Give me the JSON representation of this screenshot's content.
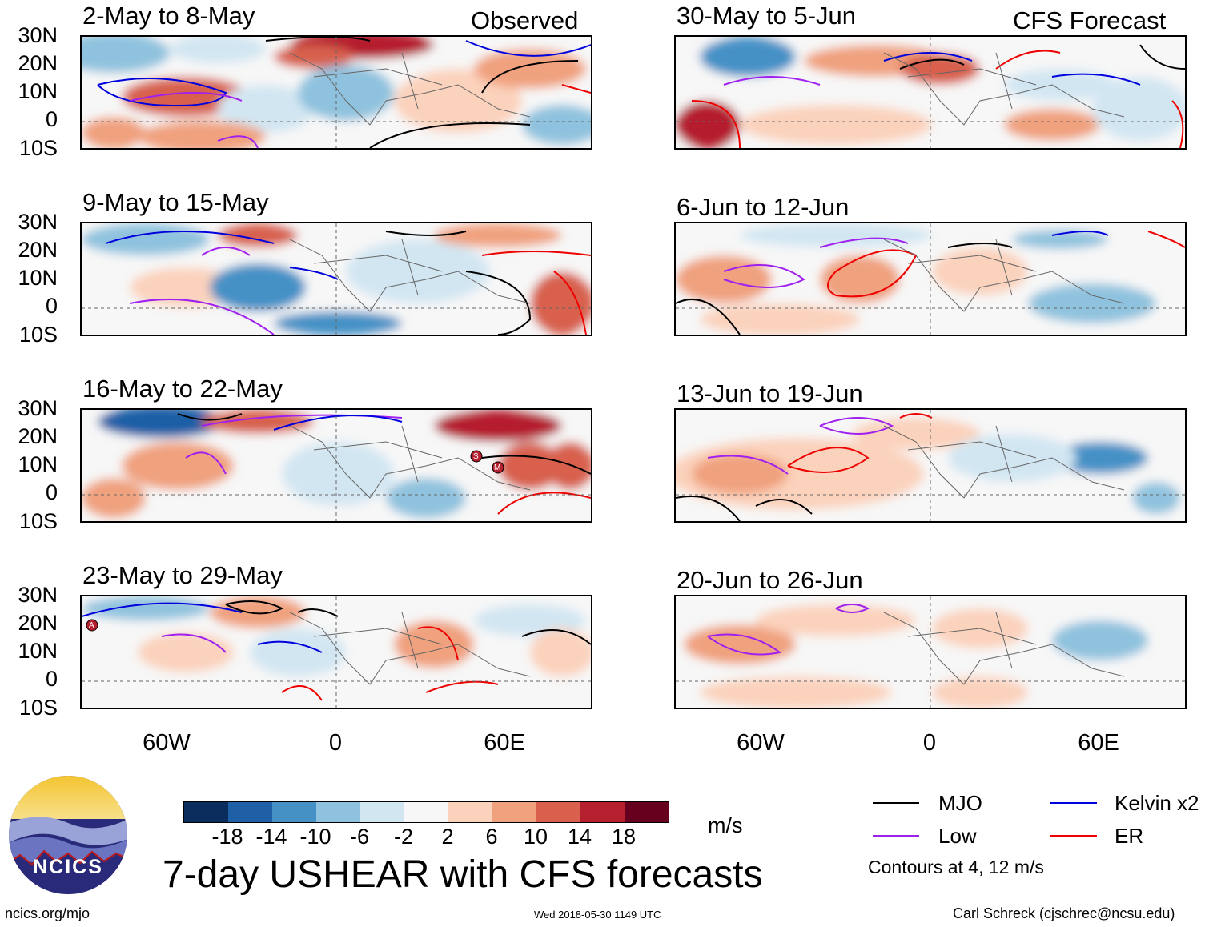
{
  "title": "7-day USHEAR with CFS forecasts",
  "columns": {
    "left": {
      "source_label": "Observed"
    },
    "right": {
      "source_label": "CFS Forecast"
    }
  },
  "panels": [
    {
      "label": "2-May to 8-May"
    },
    {
      "label": "30-May to 5-Jun"
    },
    {
      "label": "9-May to 15-May"
    },
    {
      "label": "6-Jun to 12-Jun"
    },
    {
      "label": "16-May to 22-May"
    },
    {
      "label": "13-Jun to 19-Jun"
    },
    {
      "label": "23-May to 29-May"
    },
    {
      "label": "20-Jun to 26-Jun"
    }
  ],
  "axes": {
    "lat_ticks": [
      "30N",
      "20N",
      "10N",
      "0",
      "10S"
    ],
    "lon_ticks": [
      "60W",
      "0",
      "60E"
    ]
  },
  "colorbar": {
    "ticks": [
      "-18",
      "-14",
      "-10",
      "-6",
      "-2",
      "2",
      "6",
      "10",
      "14",
      "18"
    ],
    "colors": [
      "#0b2d5e",
      "#1f5fa6",
      "#4591c6",
      "#8fc2de",
      "#d2e6f2",
      "#f7f7f7",
      "#fbd2bc",
      "#f0a17e",
      "#d8604d",
      "#b51f2e",
      "#67001f"
    ],
    "units": "m/s"
  },
  "legend": {
    "items": [
      {
        "label": "MJO",
        "color": "#000000"
      },
      {
        "label": "Kelvin x2",
        "color": "#0000dd"
      },
      {
        "label": "Low",
        "color": "#a020f0"
      },
      {
        "label": "ER",
        "color": "#ee0000"
      }
    ],
    "note": "Contours at 4, 12 m/s"
  },
  "storm_markers": [
    "S",
    "M",
    "A"
  ],
  "logo": {
    "text": "NCICS"
  },
  "footer": {
    "url": "ncics.org/mjo",
    "timestamp": "Wed 2018-05-30 1149 UTC",
    "author": "Carl Schreck (cjschrec@ncsu.edu)"
  }
}
